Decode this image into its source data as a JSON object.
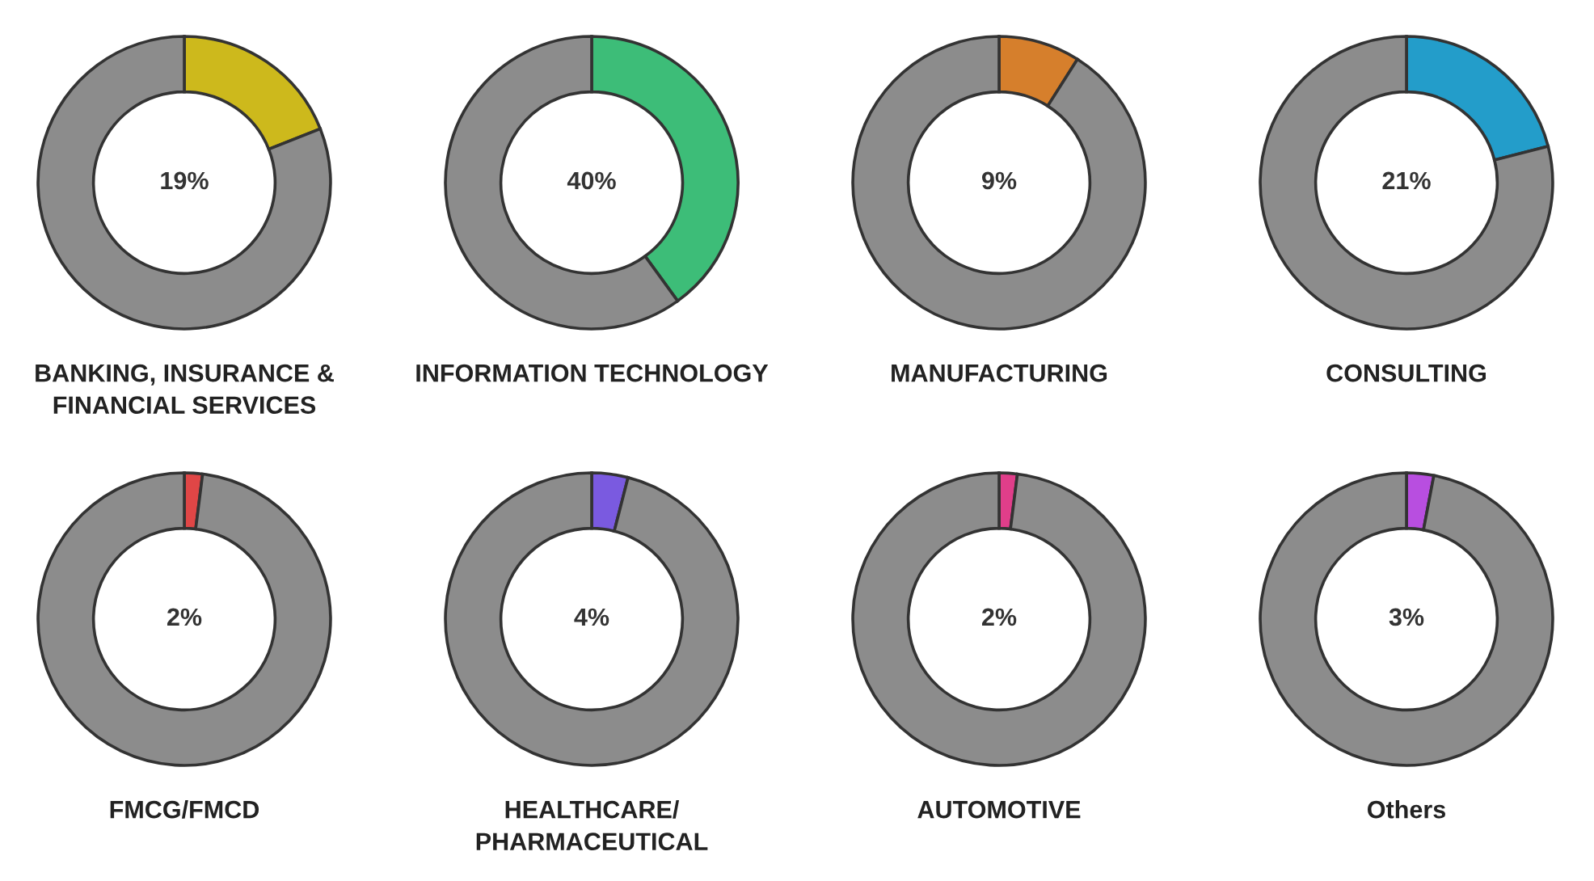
{
  "chart_data": [
    {
      "type": "donut",
      "title": "BANKING, INSURANCE &\nFINANCIAL SERVICES",
      "categories": [
        null,
        null
      ],
      "values": [
        19,
        81
      ],
      "value_labels": [
        "19%",
        null
      ],
      "colors": [
        "#cdb91c",
        "#8c8c8c"
      ]
    },
    {
      "type": "donut",
      "title": "INFORMATION TECHNOLOGY",
      "categories": [
        null,
        null
      ],
      "values": [
        40,
        60
      ],
      "value_labels": [
        "40%",
        null
      ],
      "colors": [
        "#3dbd78",
        "#8c8c8c"
      ]
    },
    {
      "type": "donut",
      "title": "MANUFACTURING",
      "categories": [
        null,
        null
      ],
      "values": [
        9,
        91
      ],
      "value_labels": [
        "9%",
        null
      ],
      "colors": [
        "#d67f2c",
        "#8c8c8c"
      ]
    },
    {
      "type": "donut",
      "title": "CONSULTING",
      "categories": [
        null,
        null
      ],
      "values": [
        21,
        79
      ],
      "value_labels": [
        "21%",
        null
      ],
      "colors": [
        "#239dca",
        "#8c8c8c"
      ]
    },
    {
      "type": "donut",
      "title": "FMCG/FMCD",
      "categories": [
        null,
        null
      ],
      "values": [
        2,
        98
      ],
      "value_labels": [
        "2%",
        null
      ],
      "colors": [
        "#e04646",
        "#8c8c8c"
      ]
    },
    {
      "type": "donut",
      "title": "HEALTHCARE/\nPHARMACEUTICAL",
      "categories": [
        null,
        null
      ],
      "values": [
        4,
        96
      ],
      "value_labels": [
        "4%",
        null
      ],
      "colors": [
        "#7a5ae0",
        "#8c8c8c"
      ]
    },
    {
      "type": "donut",
      "title": "AUTOMOTIVE",
      "categories": [
        null,
        null
      ],
      "values": [
        2,
        98
      ],
      "value_labels": [
        "2%",
        null
      ],
      "colors": [
        "#e03e8a",
        "#8c8c8c"
      ]
    },
    {
      "type": "donut",
      "title": "Others",
      "categories": [
        null,
        null
      ],
      "values": [
        3,
        97
      ],
      "value_labels": [
        "3%",
        null
      ],
      "colors": [
        "#b84ee0",
        "#8c8c8c"
      ]
    }
  ]
}
